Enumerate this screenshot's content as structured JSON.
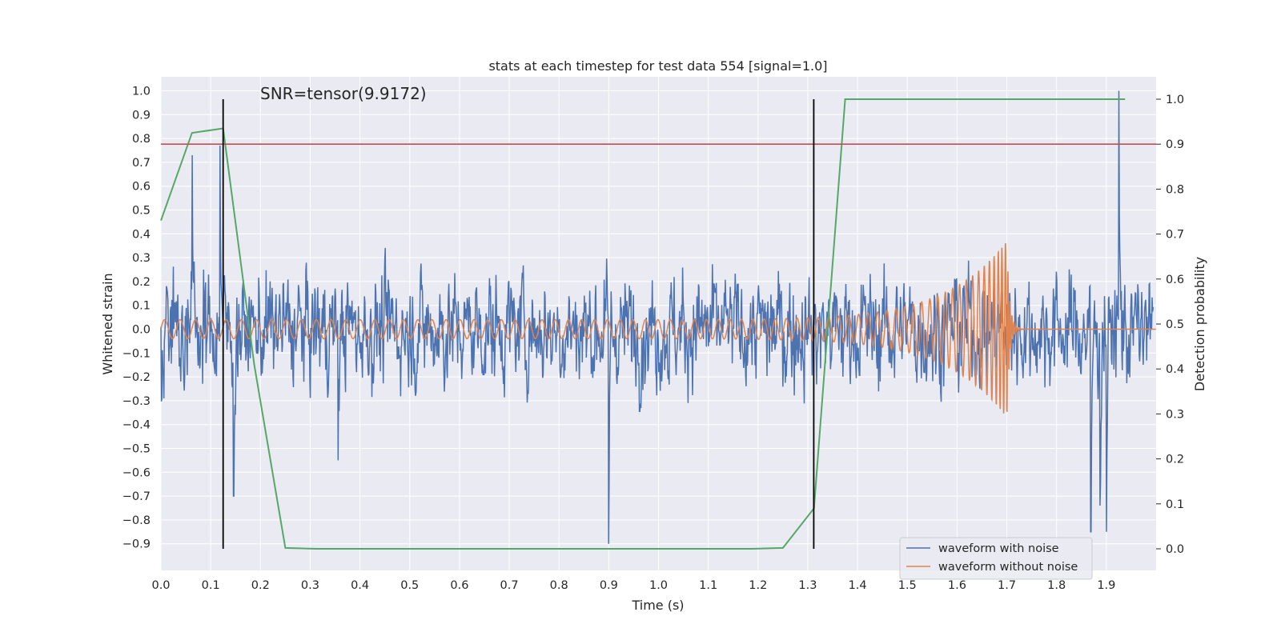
{
  "chart_data": {
    "type": "line",
    "title": "stats at each timestep for test data 554 [signal=1.0]",
    "xlabel": "Time (s)",
    "ylabel": "Whitened strain",
    "ylabel_right": "Detection probability",
    "xlim": [
      0.0,
      2.0
    ],
    "ylim": [
      -0.98,
      1.1
    ],
    "ylim_right": [
      -0.05,
      1.05
    ],
    "x_ticks": [
      "0.0",
      "0.1",
      "0.2",
      "0.3",
      "0.4",
      "0.5",
      "0.6",
      "0.7",
      "0.8",
      "0.9",
      "1.0",
      "1.1",
      "1.2",
      "1.3",
      "1.4",
      "1.5",
      "1.6",
      "1.7",
      "1.8",
      "1.9"
    ],
    "y_ticks": [
      "1.0",
      "0.9",
      "0.8",
      "0.7",
      "0.6",
      "0.5",
      "0.4",
      "0.3",
      "0.2",
      "0.1",
      "0.0",
      "−0.1",
      "−0.2",
      "−0.3",
      "−0.4",
      "−0.5",
      "−0.6",
      "−0.7",
      "−0.8",
      "−0.9"
    ],
    "y_right_ticks": [
      "1.0",
      "0.9",
      "0.8",
      "0.7",
      "0.6",
      "0.5",
      "0.4",
      "0.3",
      "0.2",
      "0.1",
      "0.0"
    ],
    "annotation": "SNR=tensor(9.9172)",
    "threshold_probability": 0.9,
    "vertical_markers_time": [
      0.125,
      1.312
    ],
    "detection_probability": {
      "x": [
        0.0,
        0.0625,
        0.125,
        0.1875,
        0.25,
        0.3125,
        0.375,
        0.4375,
        0.5,
        0.5625,
        0.625,
        0.6875,
        0.75,
        0.8125,
        0.875,
        0.9375,
        1.0,
        1.0625,
        1.125,
        1.1875,
        1.25,
        1.3125,
        1.375,
        1.4375,
        1.5,
        1.5625,
        1.625,
        1.6875,
        1.75,
        1.8125,
        1.875,
        1.9375
      ],
      "values": [
        0.73,
        0.925,
        0.935,
        0.41,
        0.002,
        0.0,
        0.0,
        0.0,
        0.0,
        0.0,
        0.0,
        0.0,
        0.0,
        0.0,
        0.0,
        0.0,
        0.0,
        0.0,
        0.0,
        0.0,
        0.002,
        0.09,
        1.0,
        1.0,
        1.0,
        1.0,
        1.0,
        1.0,
        1.0,
        1.0,
        1.0,
        1.0
      ]
    },
    "series": [
      {
        "name": "waveform with noise",
        "color": "#4c72b0",
        "noise_amplitude": 0.22,
        "max_value": 1.0,
        "min_value": -0.9
      },
      {
        "name": "waveform without noise",
        "color": "#dd8452",
        "amplitude_start": 0.04,
        "amplitude_peak": 0.37,
        "merger_time": 1.7,
        "frequency_start_hz": 32,
        "frequency_end_hz": 250
      }
    ],
    "detection_color": "#55a868",
    "threshold_color": "#c44e52",
    "legend": {
      "position": "bottom-right",
      "entries": [
        "waveform with noise",
        "waveform without noise"
      ]
    },
    "grid": true
  }
}
